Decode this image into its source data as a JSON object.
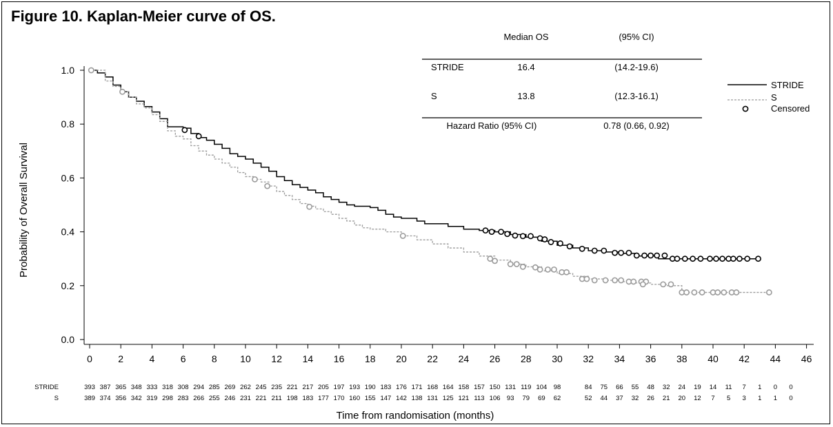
{
  "figure_title": "Figure 10. Kaplan-Meier curve of OS.",
  "colors": {
    "stride": "#000000",
    "s": "#9a9a9a",
    "text": "#000000",
    "background": "#ffffff"
  },
  "chart_data": {
    "type": "line",
    "subtype": "kaplan-meier",
    "xlabel": "Time from randomisation (months)",
    "ylabel": "Probability of Overall Survival",
    "xlim": [
      0,
      46
    ],
    "ylim": [
      0,
      1.0
    ],
    "xticks": [
      "0",
      "2",
      "4",
      "6",
      "8",
      "10",
      "12",
      "14",
      "16",
      "18",
      "20",
      "22",
      "24",
      "26",
      "28",
      "30",
      "32",
      "34",
      "36",
      "38",
      "40",
      "42",
      "44",
      "46"
    ],
    "yticks": [
      "0.0",
      "0.2",
      "0.4",
      "0.6",
      "0.8",
      "1.0"
    ],
    "grid": false,
    "legend": {
      "placement": "right",
      "entries": [
        {
          "label": "STRIDE",
          "style": "solid",
          "color": "#000000"
        },
        {
          "label": "S",
          "style": "dashed",
          "color": "#9a9a9a"
        },
        {
          "label": "Censored",
          "style": "circle",
          "color": "#000000"
        }
      ]
    },
    "summary_table": {
      "headers": [
        "",
        "Median OS",
        "(95% CI)"
      ],
      "rows": [
        [
          "STRIDE",
          "16.4",
          "(14.2-19.6)"
        ],
        [
          "S",
          "13.8",
          "(12.3-16.1)"
        ]
      ],
      "hazard_ratio_label": "Hazard Ratio (95% CI)",
      "hazard_ratio_value": "0.78 (0.66, 0.92)"
    },
    "series": [
      {
        "name": "STRIDE",
        "style": "solid",
        "color": "#000000",
        "points": [
          [
            0,
            1.0
          ],
          [
            0.5,
            0.99
          ],
          [
            1,
            0.975
          ],
          [
            1.5,
            0.945
          ],
          [
            2,
            0.92
          ],
          [
            2.5,
            0.9
          ],
          [
            3,
            0.885
          ],
          [
            3.5,
            0.865
          ],
          [
            4,
            0.845
          ],
          [
            4.5,
            0.82
          ],
          [
            5,
            0.79
          ],
          [
            6,
            0.785
          ],
          [
            6.5,
            0.765
          ],
          [
            7,
            0.75
          ],
          [
            7.5,
            0.74
          ],
          [
            8,
            0.725
          ],
          [
            8.5,
            0.71
          ],
          [
            9,
            0.69
          ],
          [
            9.5,
            0.68
          ],
          [
            10,
            0.67
          ],
          [
            10.5,
            0.655
          ],
          [
            11,
            0.64
          ],
          [
            11.5,
            0.625
          ],
          [
            12,
            0.605
          ],
          [
            12.5,
            0.59
          ],
          [
            13,
            0.575
          ],
          [
            13.5,
            0.565
          ],
          [
            14,
            0.555
          ],
          [
            14.5,
            0.545
          ],
          [
            15,
            0.53
          ],
          [
            15.5,
            0.52
          ],
          [
            16,
            0.51
          ],
          [
            16.5,
            0.5
          ],
          [
            17,
            0.495
          ],
          [
            18,
            0.49
          ],
          [
            18.5,
            0.48
          ],
          [
            19,
            0.465
          ],
          [
            19.5,
            0.455
          ],
          [
            20,
            0.45
          ],
          [
            21,
            0.44
          ],
          [
            21.5,
            0.43
          ],
          [
            22,
            0.43
          ],
          [
            23,
            0.42
          ],
          [
            24,
            0.41
          ],
          [
            25,
            0.405
          ],
          [
            26,
            0.4
          ],
          [
            27,
            0.39
          ],
          [
            28,
            0.38
          ],
          [
            29,
            0.365
          ],
          [
            30,
            0.35
          ],
          [
            31,
            0.34
          ],
          [
            32,
            0.33
          ],
          [
            33,
            0.325
          ],
          [
            34,
            0.32
          ],
          [
            35,
            0.31
          ],
          [
            36,
            0.31
          ],
          [
            36.5,
            0.3
          ],
          [
            37,
            0.3
          ],
          [
            43,
            0.3
          ]
        ],
        "censored": [
          [
            6.1,
            0.778
          ],
          [
            7,
            0.755
          ],
          [
            25.4,
            0.405
          ],
          [
            25.8,
            0.4
          ],
          [
            26.4,
            0.4
          ],
          [
            26.8,
            0.392
          ],
          [
            27.3,
            0.386
          ],
          [
            27.8,
            0.384
          ],
          [
            28.3,
            0.384
          ],
          [
            28.9,
            0.376
          ],
          [
            29.2,
            0.372
          ],
          [
            29.6,
            0.362
          ],
          [
            30.2,
            0.357
          ],
          [
            30.8,
            0.346
          ],
          [
            31.6,
            0.337
          ],
          [
            32.4,
            0.33
          ],
          [
            33,
            0.33
          ],
          [
            33.7,
            0.322
          ],
          [
            34.1,
            0.322
          ],
          [
            34.6,
            0.322
          ],
          [
            35.1,
            0.312
          ],
          [
            35.6,
            0.312
          ],
          [
            36,
            0.312
          ],
          [
            36.4,
            0.312
          ],
          [
            36.9,
            0.312
          ],
          [
            37.4,
            0.3
          ],
          [
            37.7,
            0.3
          ],
          [
            38.2,
            0.3
          ],
          [
            38.7,
            0.3
          ],
          [
            39.2,
            0.3
          ],
          [
            39.8,
            0.3
          ],
          [
            40.2,
            0.3
          ],
          [
            40.6,
            0.3
          ],
          [
            41,
            0.3
          ],
          [
            41.3,
            0.3
          ],
          [
            41.7,
            0.3
          ],
          [
            42.2,
            0.3
          ],
          [
            42.9,
            0.3
          ]
        ]
      },
      {
        "name": "S",
        "style": "dashed",
        "color": "#9a9a9a",
        "points": [
          [
            0,
            1.0
          ],
          [
            1,
            0.96
          ],
          [
            1.5,
            0.94
          ],
          [
            2,
            0.92
          ],
          [
            2.5,
            0.9
          ],
          [
            3,
            0.875
          ],
          [
            3.5,
            0.86
          ],
          [
            4,
            0.835
          ],
          [
            4.5,
            0.81
          ],
          [
            5,
            0.775
          ],
          [
            5.5,
            0.755
          ],
          [
            6,
            0.745
          ],
          [
            6.5,
            0.72
          ],
          [
            7,
            0.7
          ],
          [
            7.5,
            0.685
          ],
          [
            8,
            0.67
          ],
          [
            8.5,
            0.655
          ],
          [
            9,
            0.64
          ],
          [
            9.5,
            0.62
          ],
          [
            10,
            0.605
          ],
          [
            10.5,
            0.595
          ],
          [
            11,
            0.585
          ],
          [
            11.5,
            0.57
          ],
          [
            12,
            0.55
          ],
          [
            12.5,
            0.535
          ],
          [
            13,
            0.52
          ],
          [
            13.5,
            0.505
          ],
          [
            14,
            0.495
          ],
          [
            14.5,
            0.485
          ],
          [
            15,
            0.475
          ],
          [
            15.5,
            0.465
          ],
          [
            16,
            0.45
          ],
          [
            16.5,
            0.44
          ],
          [
            17,
            0.425
          ],
          [
            17.5,
            0.415
          ],
          [
            18,
            0.41
          ],
          [
            19,
            0.4
          ],
          [
            20,
            0.385
          ],
          [
            21,
            0.37
          ],
          [
            22,
            0.355
          ],
          [
            23,
            0.34
          ],
          [
            24,
            0.325
          ],
          [
            25,
            0.31
          ],
          [
            26,
            0.295
          ],
          [
            27,
            0.28
          ],
          [
            28,
            0.27
          ],
          [
            29,
            0.255
          ],
          [
            30,
            0.245
          ],
          [
            31,
            0.235
          ],
          [
            32,
            0.225
          ],
          [
            33,
            0.22
          ],
          [
            34,
            0.215
          ],
          [
            35,
            0.21
          ],
          [
            36,
            0.205
          ],
          [
            37,
            0.2
          ],
          [
            38,
            0.175
          ],
          [
            43.5,
            0.175
          ]
        ],
        "censored": [
          [
            0.1,
            1.0
          ],
          [
            2.1,
            0.92
          ],
          [
            10.6,
            0.595
          ],
          [
            11.4,
            0.57
          ],
          [
            14.1,
            0.493
          ],
          [
            20.1,
            0.385
          ],
          [
            25.7,
            0.3
          ],
          [
            26,
            0.292
          ],
          [
            27,
            0.28
          ],
          [
            27.4,
            0.28
          ],
          [
            27.8,
            0.27
          ],
          [
            28.6,
            0.268
          ],
          [
            28.9,
            0.26
          ],
          [
            29.4,
            0.26
          ],
          [
            29.8,
            0.26
          ],
          [
            30.3,
            0.25
          ],
          [
            30.6,
            0.25
          ],
          [
            31.6,
            0.225
          ],
          [
            31.9,
            0.225
          ],
          [
            32.4,
            0.22
          ],
          [
            33.1,
            0.22
          ],
          [
            33.7,
            0.22
          ],
          [
            34.1,
            0.22
          ],
          [
            34.6,
            0.215
          ],
          [
            34.9,
            0.215
          ],
          [
            35.4,
            0.215
          ],
          [
            35.7,
            0.215
          ],
          [
            35.5,
            0.205
          ],
          [
            36.8,
            0.205
          ],
          [
            37.3,
            0.205
          ],
          [
            38,
            0.175
          ],
          [
            38.3,
            0.175
          ],
          [
            38.8,
            0.175
          ],
          [
            39.3,
            0.175
          ],
          [
            40,
            0.175
          ],
          [
            40.3,
            0.175
          ],
          [
            40.7,
            0.175
          ],
          [
            41.2,
            0.175
          ],
          [
            41.5,
            0.175
          ],
          [
            43.6,
            0.175
          ]
        ]
      }
    ],
    "at_risk": {
      "rows": [
        {
          "label": "STRIDE",
          "values": [
            "393",
            "387",
            "365",
            "348",
            "333",
            "318",
            "308",
            "294",
            "285",
            "269",
            "262",
            "245",
            "235",
            "221",
            "217",
            "205",
            "197",
            "193",
            "190",
            "183",
            "176",
            "171",
            "168",
            "164",
            "158",
            "157",
            "150",
            "131",
            "119",
            "104",
            "98",
            "84",
            "75",
            "66",
            "55",
            "48",
            "32",
            "24",
            "19",
            "14",
            "11",
            "7",
            "1",
            "0",
            "0"
          ]
        },
        {
          "label": "S",
          "values": [
            "389",
            "374",
            "356",
            "342",
            "319",
            "298",
            "283",
            "266",
            "255",
            "246",
            "231",
            "221",
            "211",
            "198",
            "183",
            "177",
            "170",
            "160",
            "155",
            "147",
            "142",
            "138",
            "131",
            "125",
            "121",
            "113",
            "106",
            "93",
            "79",
            "69",
            "62",
            "52",
            "44",
            "37",
            "32",
            "26",
            "21",
            "20",
            "12",
            "7",
            "5",
            "3",
            "1",
            "1",
            "0"
          ]
        }
      ],
      "times": [
        0,
        1,
        2,
        3,
        4,
        5,
        6,
        7,
        8,
        9,
        10,
        11,
        12,
        13,
        14,
        15,
        16,
        17,
        18,
        19,
        20,
        21,
        22,
        23,
        24,
        25,
        26,
        27,
        28,
        29,
        30,
        32,
        33,
        34,
        35,
        36,
        37,
        38,
        39,
        40,
        41,
        42,
        43,
        44,
        45
      ]
    }
  }
}
